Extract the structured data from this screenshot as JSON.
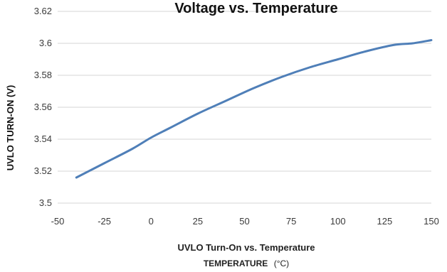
{
  "chart_data": {
    "type": "line",
    "title": "Voltage vs. Temperature",
    "caption": "UVLO Turn-On vs. Temperature",
    "xlabel_main": "TEMPERATURE",
    "xlabel_unit": "(°C)",
    "ylabel": "UVLO TURN-ON (V)",
    "xlim": [
      -50,
      150
    ],
    "ylim": [
      3.5,
      3.62
    ],
    "xticks": [
      "-50",
      "-25",
      "0",
      "25",
      "50",
      "75",
      "100",
      "125",
      "150"
    ],
    "yticks": [
      "3.5",
      "3.52",
      "3.54",
      "3.56",
      "3.58",
      "3.6",
      "3.62"
    ],
    "grid": true,
    "series_color": "#4f7fb8",
    "grid_color": "#d4d4d4",
    "series": [
      {
        "x": [
          -40,
          -25,
          -10,
          0,
          10,
          25,
          40,
          55,
          70,
          85,
          100,
          115,
          130,
          140,
          150
        ],
        "y": [
          3.516,
          3.525,
          3.534,
          3.541,
          3.547,
          3.556,
          3.564,
          3.572,
          3.579,
          3.585,
          3.59,
          3.595,
          3.599,
          3.6,
          3.602
        ]
      }
    ]
  }
}
